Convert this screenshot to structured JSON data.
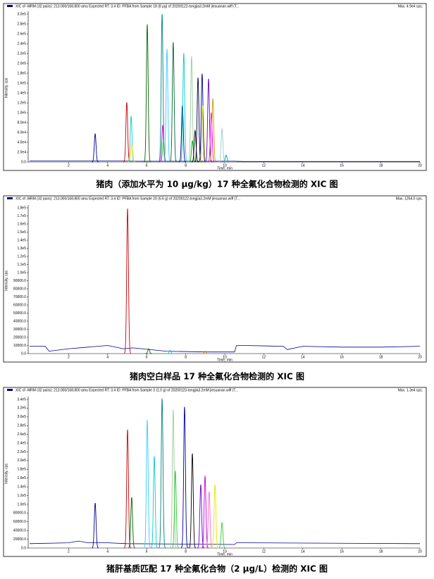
{
  "chart_data": [
    {
      "type": "chromatogram",
      "header": "XIC of -MRM (32 pairs): 213.000/168.800 amu Expected RT: 3.4 ID: PFBA from Sample 18 (8 μg) of 20200122-tongjia3.2mM jiesuanan.wiff (T...",
      "max_label": "Max. 4.9e4 cps.",
      "caption": "猪肉（添加水平为 10 μg/kg）17 种全氟化合物检测的 XIC 图",
      "x_label": "Time, min",
      "y_label": "Intensity, cps",
      "xlim": [
        0,
        20
      ],
      "xticks": [
        2,
        4,
        6,
        8,
        10,
        12,
        14,
        16,
        18,
        20
      ],
      "ylim": [
        0,
        300000
      ],
      "yticks": [
        {
          "value": 0,
          "label": "0.0"
        },
        {
          "value": 20000,
          "label": "2.0e4"
        },
        {
          "value": 40000,
          "label": "4.0e4"
        },
        {
          "value": 60000,
          "label": "6.0e4"
        },
        {
          "value": 80000,
          "label": "8.0e4"
        },
        {
          "value": 100000,
          "label": "1.0e5"
        },
        {
          "value": 120000,
          "label": "1.2e5"
        },
        {
          "value": 140000,
          "label": "1.4e5"
        },
        {
          "value": 160000,
          "label": "1.6e5"
        },
        {
          "value": 180000,
          "label": "1.8e5"
        },
        {
          "value": 200000,
          "label": "2.0e5"
        },
        {
          "value": 220000,
          "label": "2.2e5"
        },
        {
          "value": 240000,
          "label": "2.4e5"
        },
        {
          "value": 260000,
          "label": "2.6e5"
        },
        {
          "value": 280000,
          "label": "2.8e5"
        },
        {
          "value": 300000,
          "label": "3.0e5"
        }
      ],
      "baseline": {
        "color": "#00008b",
        "x": [
          0,
          3,
          4.8,
          5.5,
          10.5,
          11,
          20
        ],
        "values": [
          2000,
          2000,
          2000,
          1500,
          1500,
          1000,
          1000
        ]
      },
      "peaks": {
        "x": [
          3.36,
          4.98,
          5.2,
          5.24,
          6.03,
          6.79,
          6.82,
          6.86,
          7.04,
          7.36,
          7.83,
          7.9,
          8.3,
          8.34,
          8.48,
          8.63,
          8.84,
          8.88,
          9.17,
          9.31,
          9.39,
          9.86,
          10.07
        ],
        "values": [
          57000,
          121000,
          93000,
          36000,
          279000,
          300000,
          74000,
          43000,
          229000,
          243000,
          114000,
          221000,
          214000,
          43000,
          64000,
          171000,
          179000,
          114000,
          169000,
          100000,
          129000,
          67000,
          14000
        ],
        "colors": [
          "#00008b",
          "#cc0000",
          "#00cccc",
          "#e6e600",
          "#006400",
          "#008080",
          "#cc00cc",
          "#33cc33",
          "#33ccff",
          "#006633",
          "#000080",
          "#00cccc",
          "#99cc99",
          "#00aa00",
          "#000000",
          "#000033",
          "#000099",
          "#cccc00",
          "#6600cc",
          "#ff00ff",
          "#cc9900",
          "#99cccc",
          "#009999"
        ]
      }
    },
    {
      "type": "chromatogram",
      "header": "XIC of -MRM (32 pairs): 213.000/168.800 amu Expected RT: 3.4 ID: PFBA from Sample 20 (6.6 g) of 20200122-tongjia3.2mM jiesuanan.wiff (T...",
      "max_label": "Max. 1264.0 cps.",
      "caption": "猪肉空白样品 17 种全氟化合物检测的 XIC 图",
      "x_label": "Time, min",
      "y_label": "Intensity, cps",
      "xlim": [
        0,
        20
      ],
      "xticks": [
        2,
        4,
        6,
        8,
        10,
        12,
        14,
        16,
        18,
        20
      ],
      "ylim": [
        0,
        180000
      ],
      "yticks": [
        {
          "value": 0,
          "label": "0.0"
        },
        {
          "value": 10000,
          "label": "10000.0"
        },
        {
          "value": 20000,
          "label": "20000.0"
        },
        {
          "value": 30000,
          "label": "30000.0"
        },
        {
          "value": 40000,
          "label": "40000.0"
        },
        {
          "value": 50000,
          "label": "50000.0"
        },
        {
          "value": 60000,
          "label": "60000.0"
        },
        {
          "value": 70000,
          "label": "70000.0"
        },
        {
          "value": 80000,
          "label": "80000.0"
        },
        {
          "value": 90000,
          "label": "90000.0"
        },
        {
          "value": 100000,
          "label": "1.0e5"
        },
        {
          "value": 110000,
          "label": "1.1e5"
        },
        {
          "value": 120000,
          "label": "1.2e5"
        },
        {
          "value": 130000,
          "label": "1.3e5"
        },
        {
          "value": 140000,
          "label": "1.4e5"
        },
        {
          "value": 150000,
          "label": "1.5e5"
        },
        {
          "value": 160000,
          "label": "1.6e5"
        },
        {
          "value": 170000,
          "label": "1.7e5"
        },
        {
          "value": 180000,
          "label": "1.8e5"
        }
      ],
      "baseline": {
        "color": "#00008b",
        "x": [
          0,
          0.8,
          1,
          2,
          3,
          4,
          4.8,
          5.3,
          7,
          9,
          10.5,
          10.6,
          11,
          13,
          13.2,
          14,
          16,
          18,
          20
        ],
        "values": [
          9000,
          9000,
          3000,
          6000,
          8000,
          10000,
          6000,
          7000,
          3000,
          2000,
          2000,
          10000,
          10000,
          9000,
          5000,
          9000,
          8000,
          8000,
          9000
        ]
      },
      "peaks": {
        "x": [
          5.02,
          6.1,
          7.2,
          9.0
        ],
        "values": [
          179000,
          6000,
          4000,
          3000
        ],
        "colors": [
          "#cc0000",
          "#006400",
          "#00cccc",
          "#cc9900"
        ]
      }
    },
    {
      "type": "chromatogram",
      "header": "XIC of -MRM (32 pairs): 213.000/168.800 amu Expected RT: 3.4 ID: PFBA from Sample 3 (1.0 g) of 20200123-tongjia3.2mM jiesuanan.wiff (T...",
      "max_label": "Max. 1.3e4 cps.",
      "caption": "猪肝基质匹配 17 种全氟化合物（2 μg/L）检测的 XIC 图",
      "x_label": "Time, min",
      "y_label": "Intensity, cps",
      "xlim": [
        0,
        20
      ],
      "xticks": [
        2,
        4,
        6,
        8,
        10,
        12,
        14,
        16,
        18,
        20
      ],
      "ylim": [
        0,
        340000
      ],
      "yticks": [
        {
          "value": 0,
          "label": "0.0"
        },
        {
          "value": 20000,
          "label": "20000.0"
        },
        {
          "value": 40000,
          "label": "40000.0"
        },
        {
          "value": 60000,
          "label": "60000.0"
        },
        {
          "value": 80000,
          "label": "80000.0"
        },
        {
          "value": 100000,
          "label": "1.0e5"
        },
        {
          "value": 120000,
          "label": "1.2e5"
        },
        {
          "value": 140000,
          "label": "1.4e5"
        },
        {
          "value": 160000,
          "label": "1.6e5"
        },
        {
          "value": 180000,
          "label": "1.8e5"
        },
        {
          "value": 200000,
          "label": "2.0e5"
        },
        {
          "value": 220000,
          "label": "2.2e5"
        },
        {
          "value": 240000,
          "label": "2.4e5"
        },
        {
          "value": 260000,
          "label": "2.6e5"
        },
        {
          "value": 280000,
          "label": "2.8e5"
        },
        {
          "value": 300000,
          "label": "3.0e5"
        },
        {
          "value": 320000,
          "label": "3.2e5"
        },
        {
          "value": 340000,
          "label": "3.4e5"
        }
      ],
      "baseline": {
        "color": "#00008b",
        "x": [
          0,
          2,
          2.5,
          3,
          4,
          5,
          10.5,
          10.6,
          11,
          20
        ],
        "values": [
          10000,
          12000,
          16000,
          12000,
          12000,
          10000,
          8000,
          12000,
          12000,
          10000
        ]
      },
      "peaks": {
        "x": [
          3.36,
          5.02,
          5.23,
          6.03,
          6.39,
          6.79,
          7.36,
          7.47,
          7.94,
          8.34,
          8.77,
          8.99,
          9.2,
          9.5,
          9.86
        ],
        "values": [
          103000,
          271000,
          116000,
          293000,
          210000,
          342000,
          316000,
          177000,
          323000,
          216000,
          145000,
          165000,
          129000,
          145000,
          58000
        ],
        "colors": [
          "#00008b",
          "#cc0000",
          "#006400",
          "#33ccff",
          "#00cccc",
          "#008080",
          "#99cc99",
          "#33cc33",
          "#000099",
          "#000000",
          "#6600cc",
          "#cc00cc",
          "#ff66cc",
          "#e6e600",
          "#33cc33"
        ]
      }
    }
  ]
}
